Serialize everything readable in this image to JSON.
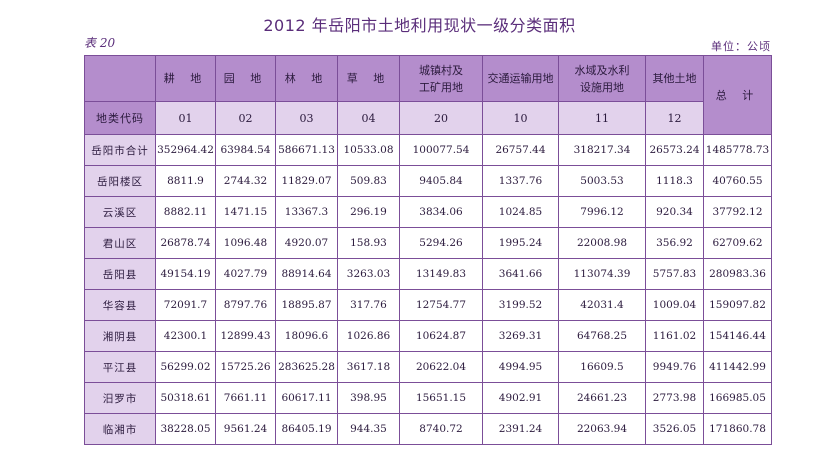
{
  "title": "2012 年岳阳市土地利用现状一级分类面积",
  "table_label": "表 20",
  "unit": "单位：公顷",
  "headers": [
    "耕  地",
    "园  地",
    "林  地",
    "草  地",
    "城镇村及\n工矿用地",
    "交通运输用地",
    "水域及水利\n设施用地",
    "其他土地",
    "总  计"
  ],
  "code_label": "地类代码",
  "codes": [
    "01",
    "02",
    "03",
    "04",
    "20",
    "10",
    "11",
    "12"
  ],
  "rows": [
    {
      "name": "岳阳市合计",
      "values": [
        "352964.42",
        "63984.54",
        "586671.13",
        "10533.08",
        "100077.54",
        "26757.44",
        "318217.34",
        "26573.24",
        "1485778.73"
      ]
    },
    {
      "name": "岳阳楼区",
      "values": [
        "8811.9",
        "2744.32",
        "11829.07",
        "509.83",
        "9405.84",
        "1337.76",
        "5003.53",
        "1118.3",
        "40760.55"
      ]
    },
    {
      "name": "云溪区",
      "values": [
        "8882.11",
        "1471.15",
        "13367.3",
        "296.19",
        "3834.06",
        "1024.85",
        "7996.12",
        "920.34",
        "37792.12"
      ]
    },
    {
      "name": "君山区",
      "values": [
        "26878.74",
        "1096.48",
        "4920.07",
        "158.93",
        "5294.26",
        "1995.24",
        "22008.98",
        "356.92",
        "62709.62"
      ]
    },
    {
      "name": "岳阳县",
      "values": [
        "49154.19",
        "4027.79",
        "88914.64",
        "3263.03",
        "13149.83",
        "3641.66",
        "113074.39",
        "5757.83",
        "280983.36"
      ]
    },
    {
      "name": "华容县",
      "values": [
        "72091.7",
        "8797.76",
        "18895.87",
        "317.76",
        "12754.77",
        "3199.52",
        "42031.4",
        "1009.04",
        "159097.82"
      ]
    },
    {
      "name": "湘阴县",
      "values": [
        "42300.1",
        "12899.43",
        "18096.6",
        "1026.86",
        "10624.87",
        "3269.31",
        "64768.25",
        "1161.02",
        "154146.44"
      ]
    },
    {
      "name": "平江县",
      "values": [
        "56299.02",
        "15725.26",
        "283625.28",
        "3617.18",
        "20622.04",
        "4994.95",
        "16609.5",
        "9949.76",
        "411442.99"
      ]
    },
    {
      "name": "汨罗市",
      "values": [
        "50318.61",
        "7661.11",
        "60617.11",
        "398.95",
        "15651.15",
        "4902.91",
        "24661.23",
        "2773.98",
        "166985.05"
      ]
    },
    {
      "name": "临湘市",
      "values": [
        "38228.05",
        "9561.24",
        "86405.19",
        "944.35",
        "8740.72",
        "2391.24",
        "22063.94",
        "3526.05",
        "171860.78"
      ]
    }
  ]
}
